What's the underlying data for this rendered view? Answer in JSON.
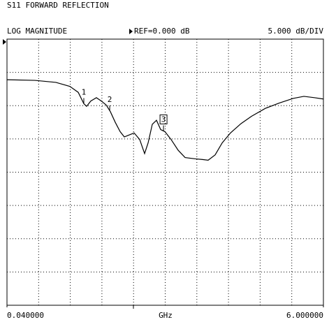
{
  "chart_data": {
    "type": "line",
    "title": "S11 FORWARD REFLECTION",
    "format": "LOG MAGNITUDE",
    "reference": "REF=0.000 dB",
    "scale": "5.000 dB/DIV",
    "x_label": "GHz",
    "xlim": [
      0.04,
      6
    ],
    "ylim": [
      -40,
      0
    ],
    "xticks": [
      {
        "value": 0.04,
        "label": "0.040000"
      },
      {
        "value": 6,
        "label": "6.000000"
      }
    ],
    "grid": {
      "x_divisions": 10,
      "y_divisions": 8
    },
    "x": [
      0.04,
      0.566,
      0.961,
      1.224,
      1.382,
      1.487,
      1.54,
      1.619,
      1.724,
      1.816,
      1.908,
      1.987,
      2.079,
      2.171,
      2.25,
      2.342,
      2.435,
      2.54,
      2.632,
      2.698,
      2.777,
      2.856,
      2.935,
      3.014,
      3.132,
      3.264,
      3.395,
      3.592,
      3.724,
      3.829,
      3.961,
      4.093,
      4.25,
      4.448,
      4.645,
      4.908,
      5.171,
      5.434,
      5.632,
      5.829,
      6.0
    ],
    "series": [
      {
        "color": "#000000",
        "values": [
          -6.1,
          -6.2,
          -6.5,
          -7.1,
          -8.0,
          -9.7,
          -10.1,
          -9.3,
          -8.8,
          -9.3,
          -9.9,
          -10.9,
          -12.5,
          -13.9,
          -14.7,
          -14.4,
          -14.1,
          -15.1,
          -17.2,
          -15.6,
          -12.8,
          -12.2,
          -13.6,
          -13.9,
          -15.1,
          -16.7,
          -17.8,
          -18.0,
          -18.1,
          -18.2,
          -17.4,
          -15.6,
          -14.1,
          -12.7,
          -11.6,
          -10.4,
          -9.6,
          -8.9,
          -8.6,
          -8.8,
          -9.0
        ]
      }
    ],
    "markers": [
      {
        "label": "1",
        "x": 1.487,
        "y": -9.7,
        "boxed": false
      },
      {
        "label": "2",
        "x": 1.975,
        "y": -10.8,
        "boxed": false
      },
      {
        "label": "3",
        "x": 2.988,
        "y": -13.8,
        "boxed": true
      }
    ]
  }
}
